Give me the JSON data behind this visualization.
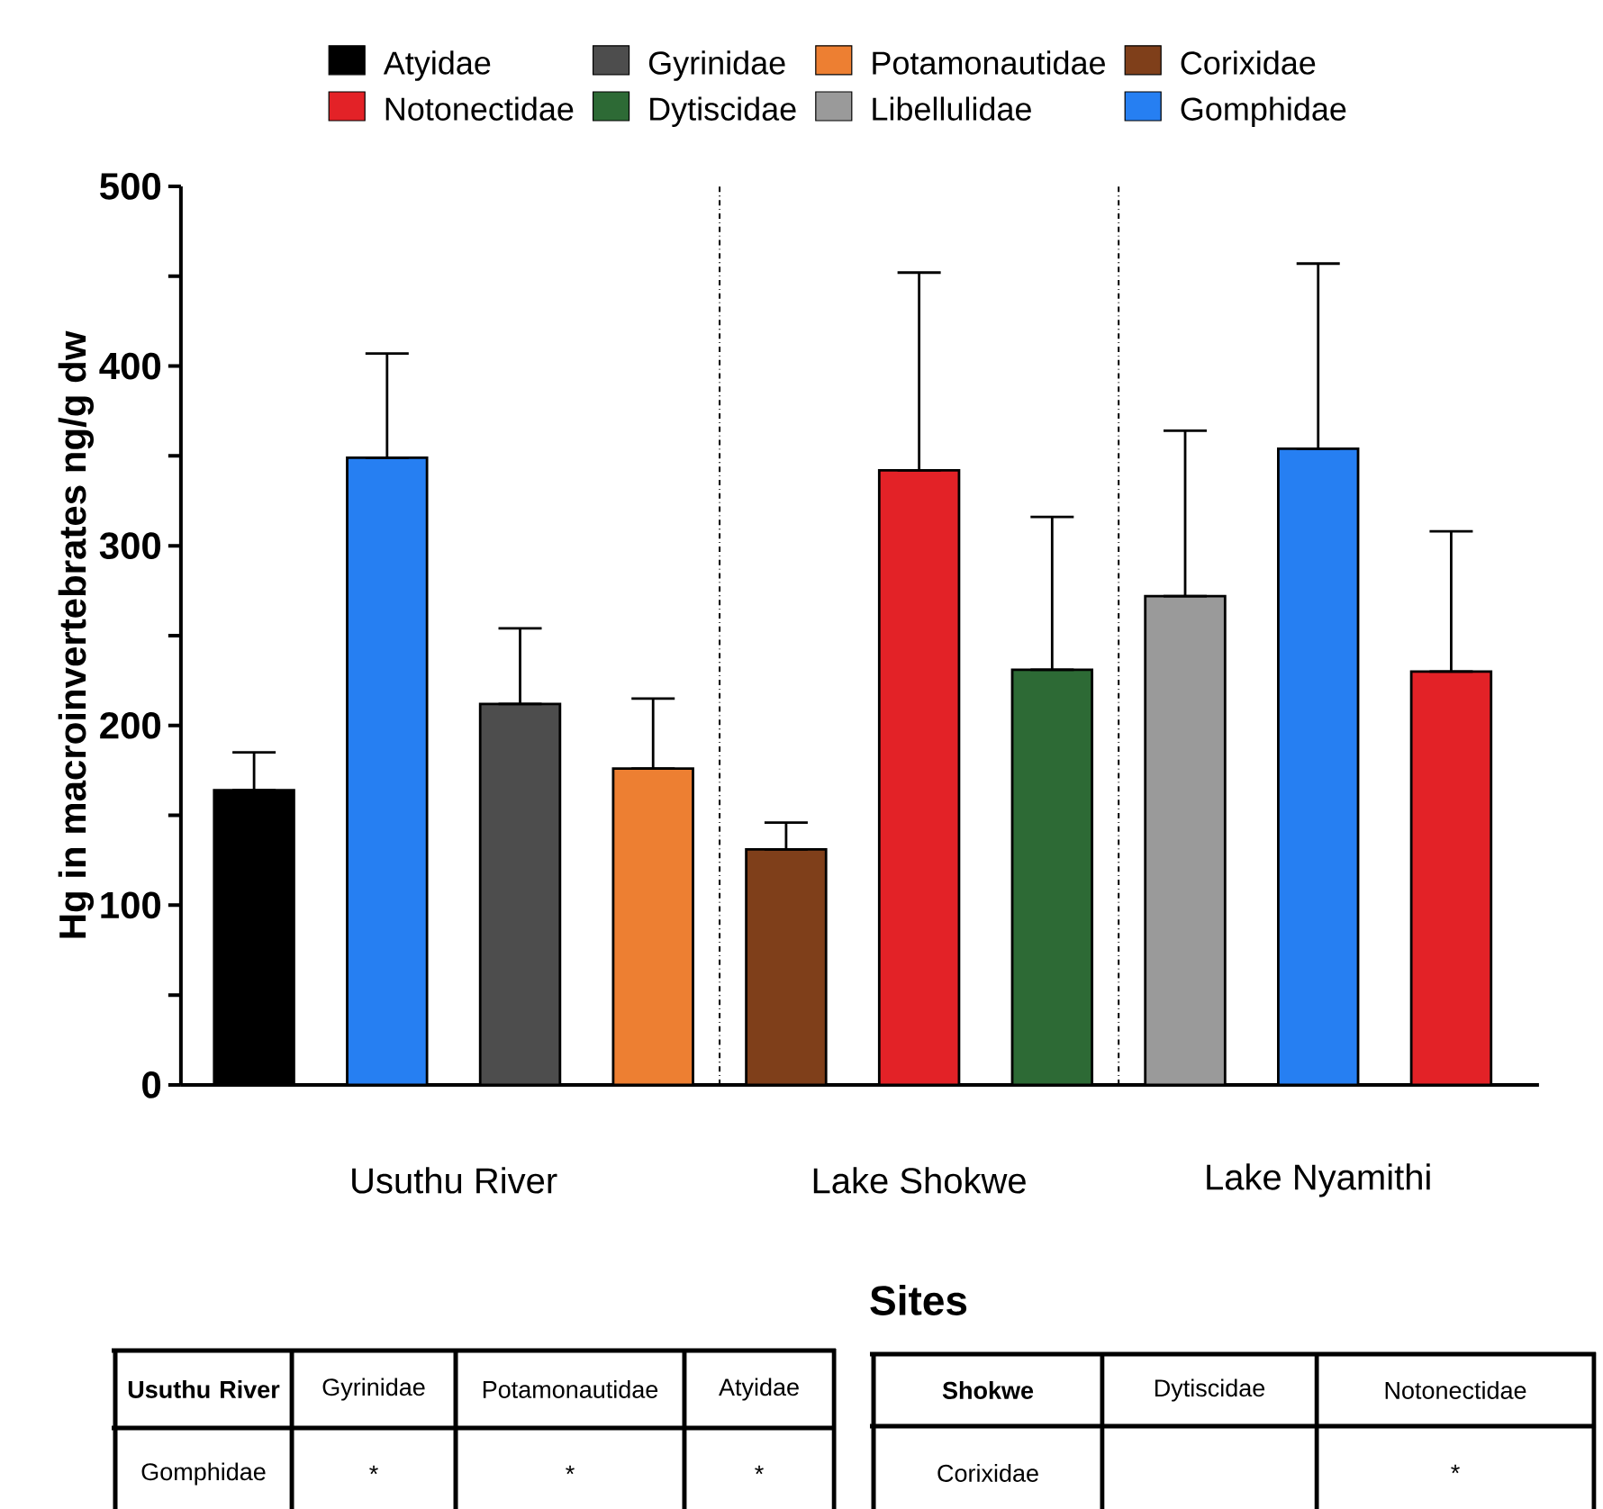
{
  "chart_data": {
    "type": "bar",
    "xlabel": "Sites",
    "ylabel": "Hg in macroinvertebrates ng/g dw",
    "categories": [
      null,
      null,
      null,
      null,
      null,
      null,
      null,
      null,
      null,
      null
    ],
    "series": [
      {
        "name": "Atyidae",
        "color": "#000000",
        "values": [
          164,
          null,
          null,
          null,
          null,
          null,
          null,
          null,
          null,
          null
        ],
        "errors": [
          [
            164,
            185
          ],
          null,
          null,
          null,
          null,
          null,
          null,
          null,
          null,
          null
        ]
      },
      {
        "name": "Gyrinidae",
        "color": "#4d4d4d",
        "values": [
          null,
          null,
          212,
          null,
          null,
          null,
          null,
          null,
          null,
          null
        ],
        "errors": [
          null,
          null,
          [
            212,
            254
          ],
          null,
          null,
          null,
          null,
          null,
          null,
          null
        ]
      },
      {
        "name": "Potamonautidae",
        "color": "#ed7f32",
        "values": [
          null,
          null,
          null,
          176,
          null,
          null,
          null,
          null,
          null,
          null
        ],
        "errors": [
          null,
          null,
          null,
          [
            176,
            215
          ],
          null,
          null,
          null,
          null,
          null,
          null
        ]
      },
      {
        "name": "Corixidae",
        "color": "#7f3f1a",
        "values": [
          null,
          null,
          null,
          null,
          131,
          null,
          null,
          null,
          null,
          null
        ],
        "errors": [
          null,
          null,
          null,
          null,
          [
            131,
            146
          ],
          null,
          null,
          null,
          null,
          null
        ]
      },
      {
        "name": "Notonectidae",
        "color": "#e32227",
        "values": [
          null,
          null,
          null,
          null,
          null,
          342,
          null,
          null,
          null,
          230
        ],
        "errors": [
          null,
          null,
          null,
          null,
          null,
          [
            342,
            452
          ],
          null,
          null,
          null,
          [
            230,
            308
          ]
        ]
      },
      {
        "name": "Dytiscidae",
        "color": "#2d6a35",
        "values": [
          null,
          null,
          null,
          null,
          null,
          null,
          231,
          null,
          null,
          null
        ],
        "errors": [
          null,
          null,
          null,
          null,
          null,
          null,
          [
            231,
            316
          ],
          null,
          null,
          null
        ]
      },
      {
        "name": "Libellulidae",
        "color": "#9a9a9a",
        "values": [
          null,
          null,
          null,
          null,
          null,
          null,
          null,
          272,
          null,
          null
        ],
        "errors": [
          null,
          null,
          null,
          null,
          null,
          null,
          null,
          [
            272,
            364
          ],
          null,
          null
        ]
      },
      {
        "name": "Gomphidae",
        "color": "#267ff2",
        "values": [
          null,
          349,
          null,
          null,
          null,
          null,
          null,
          null,
          354,
          null
        ],
        "errors": [
          null,
          [
            349,
            407
          ],
          null,
          null,
          null,
          null,
          null,
          null,
          [
            354,
            457
          ],
          null
        ]
      }
    ],
    "ylim": [
      0,
      500
    ],
    "yticks": [
      0,
      {
        "value": 50,
        "label": null
      },
      100,
      {
        "value": 150,
        "label": null
      },
      200,
      {
        "value": 250,
        "label": null
      },
      300,
      {
        "value": 350,
        "label": null
      },
      400,
      {
        "value": 450,
        "label": null
      },
      500
    ],
    "legend": "top",
    "annotations": [
      "Usuthu River",
      "Lake Shokwe",
      "Lake Nyamithi",
      "Usuthu River",
      "Gyrinidae",
      "Potamonautidae",
      "Atyidae",
      "Gomphidae",
      "*",
      "*",
      "*",
      "Shokwe",
      "Dytiscidae",
      "Notonectidae",
      "Corixidae",
      "*"
    ]
  }
}
